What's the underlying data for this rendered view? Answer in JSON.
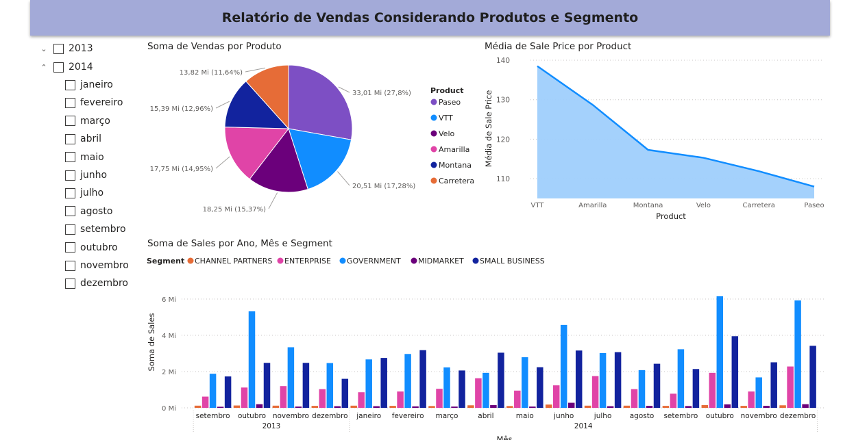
{
  "report_title": "Relatório de Vendas Considerando Produtos e Segmento",
  "slicer": {
    "years": [
      {
        "label": "2013",
        "chevron": "chevron-down-icon",
        "expanded": false
      },
      {
        "label": "2014",
        "chevron": "chevron-up-icon",
        "expanded": true
      }
    ],
    "months": [
      "janeiro",
      "fevereiro",
      "março",
      "abril",
      "maio",
      "junho",
      "julho",
      "agosto",
      "setembro",
      "outubro",
      "novembro",
      "dezembro"
    ]
  },
  "pie": {
    "title": "Soma de Vendas por Produto",
    "legend_title": "Product"
  },
  "area": {
    "title": "Média de Sale Price por Product"
  },
  "column": {
    "title": "Soma de Sales por Ano, Mês e Segment",
    "legend_title": "Segment"
  },
  "chart_data": [
    {
      "type": "pie",
      "title": "Soma de Vendas por Produto",
      "legend_title": "Product",
      "slices": [
        {
          "name": "Paseo",
          "value": 33.01,
          "label": "33,01 Mi (27,8%)",
          "color": "#7d4fc4"
        },
        {
          "name": "VTT",
          "value": 20.51,
          "label": "20,51 Mi (17,28%)",
          "color": "#118dff"
        },
        {
          "name": "Velo",
          "value": 18.25,
          "label": "18,25 Mi (15,37%)",
          "color": "#6b007b"
        },
        {
          "name": "Amarilla",
          "value": 17.75,
          "label": "17,75 Mi (14,95%)",
          "color": "#e044a7"
        },
        {
          "name": "Montana",
          "value": 15.39,
          "label": "15,39 Mi (12,96%)",
          "color": "#12239e"
        },
        {
          "name": "Carretera",
          "value": 13.82,
          "label": "13,82 Mi (11,64%)",
          "color": "#e66c37"
        }
      ]
    },
    {
      "type": "area",
      "title": "Média de Sale Price por Product",
      "xlabel": "Product",
      "ylabel": "Média de Sale Price",
      "categories": [
        "VTT",
        "Amarilla",
        "Montana",
        "Velo",
        "Carretera",
        "Paseo"
      ],
      "values": [
        138.5,
        128.7,
        117.3,
        115.3,
        111.9,
        108.0
      ],
      "yticks": [
        110,
        120,
        130,
        140
      ],
      "ylim": [
        105,
        140
      ],
      "fill_color": "#9fcffc",
      "line_color": "#118dff",
      "grid": true
    },
    {
      "type": "bar",
      "title": "Soma de Sales por Ano, Mês e Segment",
      "xlabel": "Mês",
      "ylabel": "Soma de Sales",
      "legend_title": "Segment",
      "legend_position": "top-left",
      "yticks": [
        {
          "value": 0,
          "label": "0 Mi"
        },
        {
          "value": 2,
          "label": "2 Mi"
        },
        {
          "value": 4,
          "label": "4 Mi"
        },
        {
          "value": 6,
          "label": "6 Mi"
        }
      ],
      "ylim": [
        0,
        6.3
      ],
      "categories": [
        "setembro",
        "outubro",
        "novembro",
        "dezembro",
        "janeiro",
        "fevereiro",
        "março",
        "abril",
        "maio",
        "junho",
        "julho",
        "agosto",
        "setembro",
        "outubro",
        "novembro",
        "dezembro"
      ],
      "groups": [
        {
          "label": "2013",
          "count": 4
        },
        {
          "label": "2014",
          "count": 12
        }
      ],
      "series": [
        {
          "name": "CHANNEL PARTNERS",
          "color": "#e66c37",
          "values": [
            0.12,
            0.13,
            0.12,
            0.11,
            0.12,
            0.11,
            0.1,
            0.14,
            0.1,
            0.18,
            0.12,
            0.12,
            0.11,
            0.15,
            0.11,
            0.14
          ]
        },
        {
          "name": "ENTERPRISE",
          "color": "#e044a7",
          "values": [
            0.62,
            1.12,
            1.2,
            1.03,
            0.86,
            0.9,
            1.05,
            1.63,
            0.95,
            1.24,
            1.75,
            1.03,
            0.78,
            1.93,
            0.9,
            2.28
          ]
        },
        {
          "name": "GOVERNMENT",
          "color": "#118dff",
          "values": [
            1.88,
            5.32,
            3.34,
            2.47,
            2.67,
            2.97,
            2.23,
            1.93,
            2.79,
            4.57,
            3.02,
            2.08,
            3.23,
            6.15,
            1.68,
            5.92
          ]
        },
        {
          "name": "MIDMARKET",
          "color": "#6b007b",
          "values": [
            0.06,
            0.2,
            0.07,
            0.09,
            0.09,
            0.08,
            0.07,
            0.15,
            0.07,
            0.28,
            0.09,
            0.11,
            0.1,
            0.19,
            0.11,
            0.2
          ]
        },
        {
          "name": "SMALL BUSINESS",
          "color": "#12239e",
          "values": [
            1.73,
            2.48,
            2.48,
            1.6,
            2.75,
            3.18,
            2.06,
            3.04,
            2.24,
            3.16,
            3.07,
            2.43,
            2.14,
            3.95,
            2.51,
            3.42
          ]
        }
      ]
    }
  ]
}
